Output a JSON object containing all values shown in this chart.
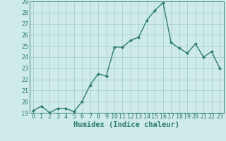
{
  "x": [
    0,
    1,
    2,
    3,
    4,
    5,
    6,
    7,
    8,
    9,
    10,
    11,
    12,
    13,
    14,
    15,
    16,
    17,
    18,
    19,
    20,
    21,
    22,
    23
  ],
  "y": [
    19.2,
    19.6,
    19.0,
    19.4,
    19.4,
    19.1,
    20.0,
    21.5,
    22.5,
    22.3,
    24.9,
    24.9,
    25.5,
    25.8,
    27.3,
    28.2,
    28.9,
    25.3,
    24.8,
    24.35,
    25.2,
    24.0,
    24.5,
    23.0
  ],
  "xlabel": "Humidex (Indice chaleur)",
  "ylim": [
    19,
    29
  ],
  "xlim": [
    -0.5,
    23.5
  ],
  "yticks": [
    19,
    20,
    21,
    22,
    23,
    24,
    25,
    26,
    27,
    28,
    29
  ],
  "xticks": [
    0,
    1,
    2,
    3,
    4,
    5,
    6,
    7,
    8,
    9,
    10,
    11,
    12,
    13,
    14,
    15,
    16,
    17,
    18,
    19,
    20,
    21,
    22,
    23
  ],
  "line_color": "#2e7d6e",
  "marker": "D",
  "marker_size": 2.0,
  "bg_color": "#ceeaea",
  "grid_color": "#aacfcf",
  "title_fontsize": 7,
  "label_fontsize": 7.5,
  "tick_fontsize": 6.0,
  "linewidth": 1.0
}
